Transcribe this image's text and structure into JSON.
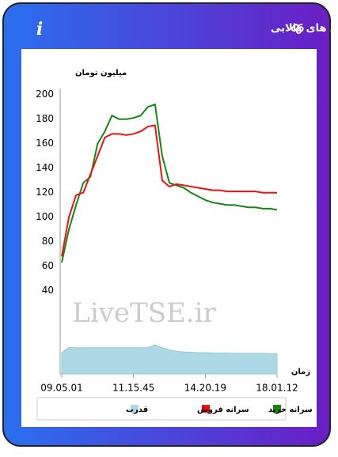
{
  "header": {
    "title": "سرانه ی خرید و فروش حقیقی در صندوق های کالایی",
    "info_icon": "i"
  },
  "chart_data": {
    "type": "line",
    "y_axis_label": "میلیون تومان",
    "x_axis_label": "زمان",
    "watermark": "LiveTSE.ir",
    "categories": [
      "09.05.01",
      null,
      null,
      null,
      null,
      null,
      null,
      null,
      null,
      null,
      "11.15.45",
      null,
      null,
      null,
      null,
      null,
      null,
      null,
      null,
      null,
      "14.20.19",
      null,
      null,
      null,
      null,
      null,
      null,
      null,
      null,
      null,
      "18.01.12"
    ],
    "ylim": [
      -28,
      205
    ],
    "yticks": [
      40,
      60,
      80,
      100,
      120,
      140,
      160,
      180,
      200
    ],
    "y2lim": [
      0,
      100
    ],
    "grid": false,
    "legend": "bottom",
    "series": [
      {
        "name": "سرانه خرید",
        "color": "#118811",
        "values": [
          63,
          90,
          110,
          128,
          133,
          160,
          170,
          183,
          180,
          180,
          181,
          183,
          190,
          192,
          150,
          128,
          126,
          124,
          120,
          117,
          114,
          112,
          111,
          110,
          110,
          109,
          108,
          108,
          107,
          107,
          106
        ]
      },
      {
        "name": "سرانه فروش",
        "color": "#ee1111",
        "values": [
          68,
          100,
          118,
          120,
          135,
          150,
          165,
          168,
          168,
          167,
          168,
          170,
          174,
          175,
          130,
          125,
          127,
          126,
          125,
          124,
          123,
          122,
          122,
          121,
          121,
          121,
          121,
          121,
          120,
          120,
          120
        ]
      },
      {
        "name": "قدرت",
        "color": "#add8e6",
        "type": "area",
        "axis": "y2",
        "values": [
          60,
          75,
          74,
          74,
          74,
          74,
          74,
          74,
          74,
          74,
          74,
          74,
          74,
          82,
          74,
          68,
          64,
          62,
          61,
          60,
          60,
          59,
          59,
          59,
          58,
          58,
          58,
          58,
          58,
          57,
          57
        ]
      }
    ]
  }
}
